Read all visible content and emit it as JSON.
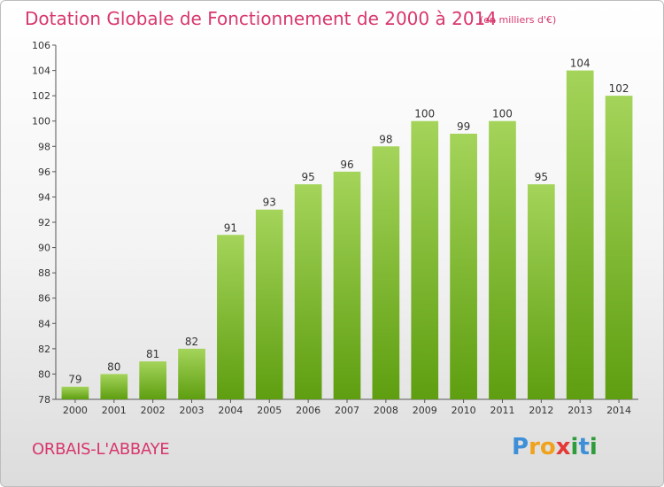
{
  "header": {
    "title": "Dotation Globale de Fonctionnement de 2000 à 2014",
    "subtitle": "(en milliers d'€)"
  },
  "footer": {
    "commune": "ORBAIS-L'ABBAYE",
    "logo_letters": [
      "P",
      "r",
      "o",
      "x",
      "i",
      "t",
      "i"
    ],
    "logo_colors": [
      "#3d8fd8",
      "#f0a21c",
      "#f0a21c",
      "#e53935",
      "#2e9c3a",
      "#3d8fd8",
      "#2e9c3a"
    ]
  },
  "colors": {
    "bar_light": "#a4d45a",
    "bar_dark": "#5e9e10",
    "text": "#d8376d"
  },
  "chart_data": {
    "type": "bar",
    "categories": [
      "2000",
      "2001",
      "2002",
      "2003",
      "2004",
      "2005",
      "2006",
      "2007",
      "2008",
      "2009",
      "2010",
      "2011",
      "2012",
      "2013",
      "2014"
    ],
    "values": [
      79,
      80,
      81,
      82,
      91,
      93,
      95,
      96,
      98,
      100,
      99,
      100,
      95,
      104,
      102
    ],
    "data_labels": [
      "79",
      "80",
      "81",
      "82",
      "91",
      "93",
      "95",
      "96",
      "98",
      "100",
      "99",
      "100",
      "95",
      "104",
      "102"
    ],
    "yticks": [
      "78",
      "80",
      "82",
      "84",
      "86",
      "88",
      "90",
      "92",
      "94",
      "96",
      "98",
      "100",
      "102",
      "104",
      "106"
    ],
    "ylim": [
      78,
      106
    ],
    "grid": false,
    "legend": "none"
  }
}
